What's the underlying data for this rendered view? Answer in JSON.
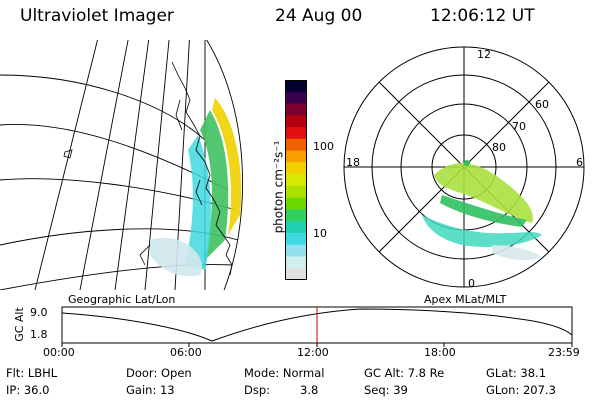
{
  "header": {
    "title": "Ultraviolet Imager",
    "date": "24 Aug 00",
    "time": "12:06:12 UT"
  },
  "colorbar": {
    "label": "photon cm⁻²s⁻¹",
    "ticks": [
      "100",
      "10"
    ],
    "colors": [
      "#000030",
      "#3a0050",
      "#7a0030",
      "#b00010",
      "#e01010",
      "#f06000",
      "#f8a000",
      "#f0d000",
      "#d8e800",
      "#a8e000",
      "#6ad800",
      "#30d060",
      "#20d0b0",
      "#40d8e0",
      "#90e0f0",
      "#d0f0f0",
      "#e0e0e0"
    ]
  },
  "polar": {
    "labels": {
      "top": "12",
      "left": "18",
      "right": "6",
      "bottom": "0"
    },
    "rings": [
      "60",
      "70",
      "80"
    ]
  },
  "plot": {
    "left_label": "Geographic Lat/Lon",
    "right_label": "Apex MLat/MLT",
    "y_axis_label": "GC Alt",
    "y_ticks": [
      "9.0",
      "1.8"
    ],
    "x_ticks": [
      "00:00",
      "06:00",
      "12:00",
      "18:00",
      "23:59"
    ],
    "marker_color": "#cc0000"
  },
  "info": {
    "flt": "Flt: LBHL",
    "ip": "IP: 36.0",
    "door": "Door: Open",
    "gain": "Gain: 13",
    "mode": "Mode: Normal",
    "dsp_label": "Dsp:",
    "dsp_value": "3.8",
    "gcalt": "GC Alt: 7.8 Re",
    "seq": "Seq: 39",
    "glat": "GLat:  38.1",
    "glon": "GLon: 207.3"
  }
}
